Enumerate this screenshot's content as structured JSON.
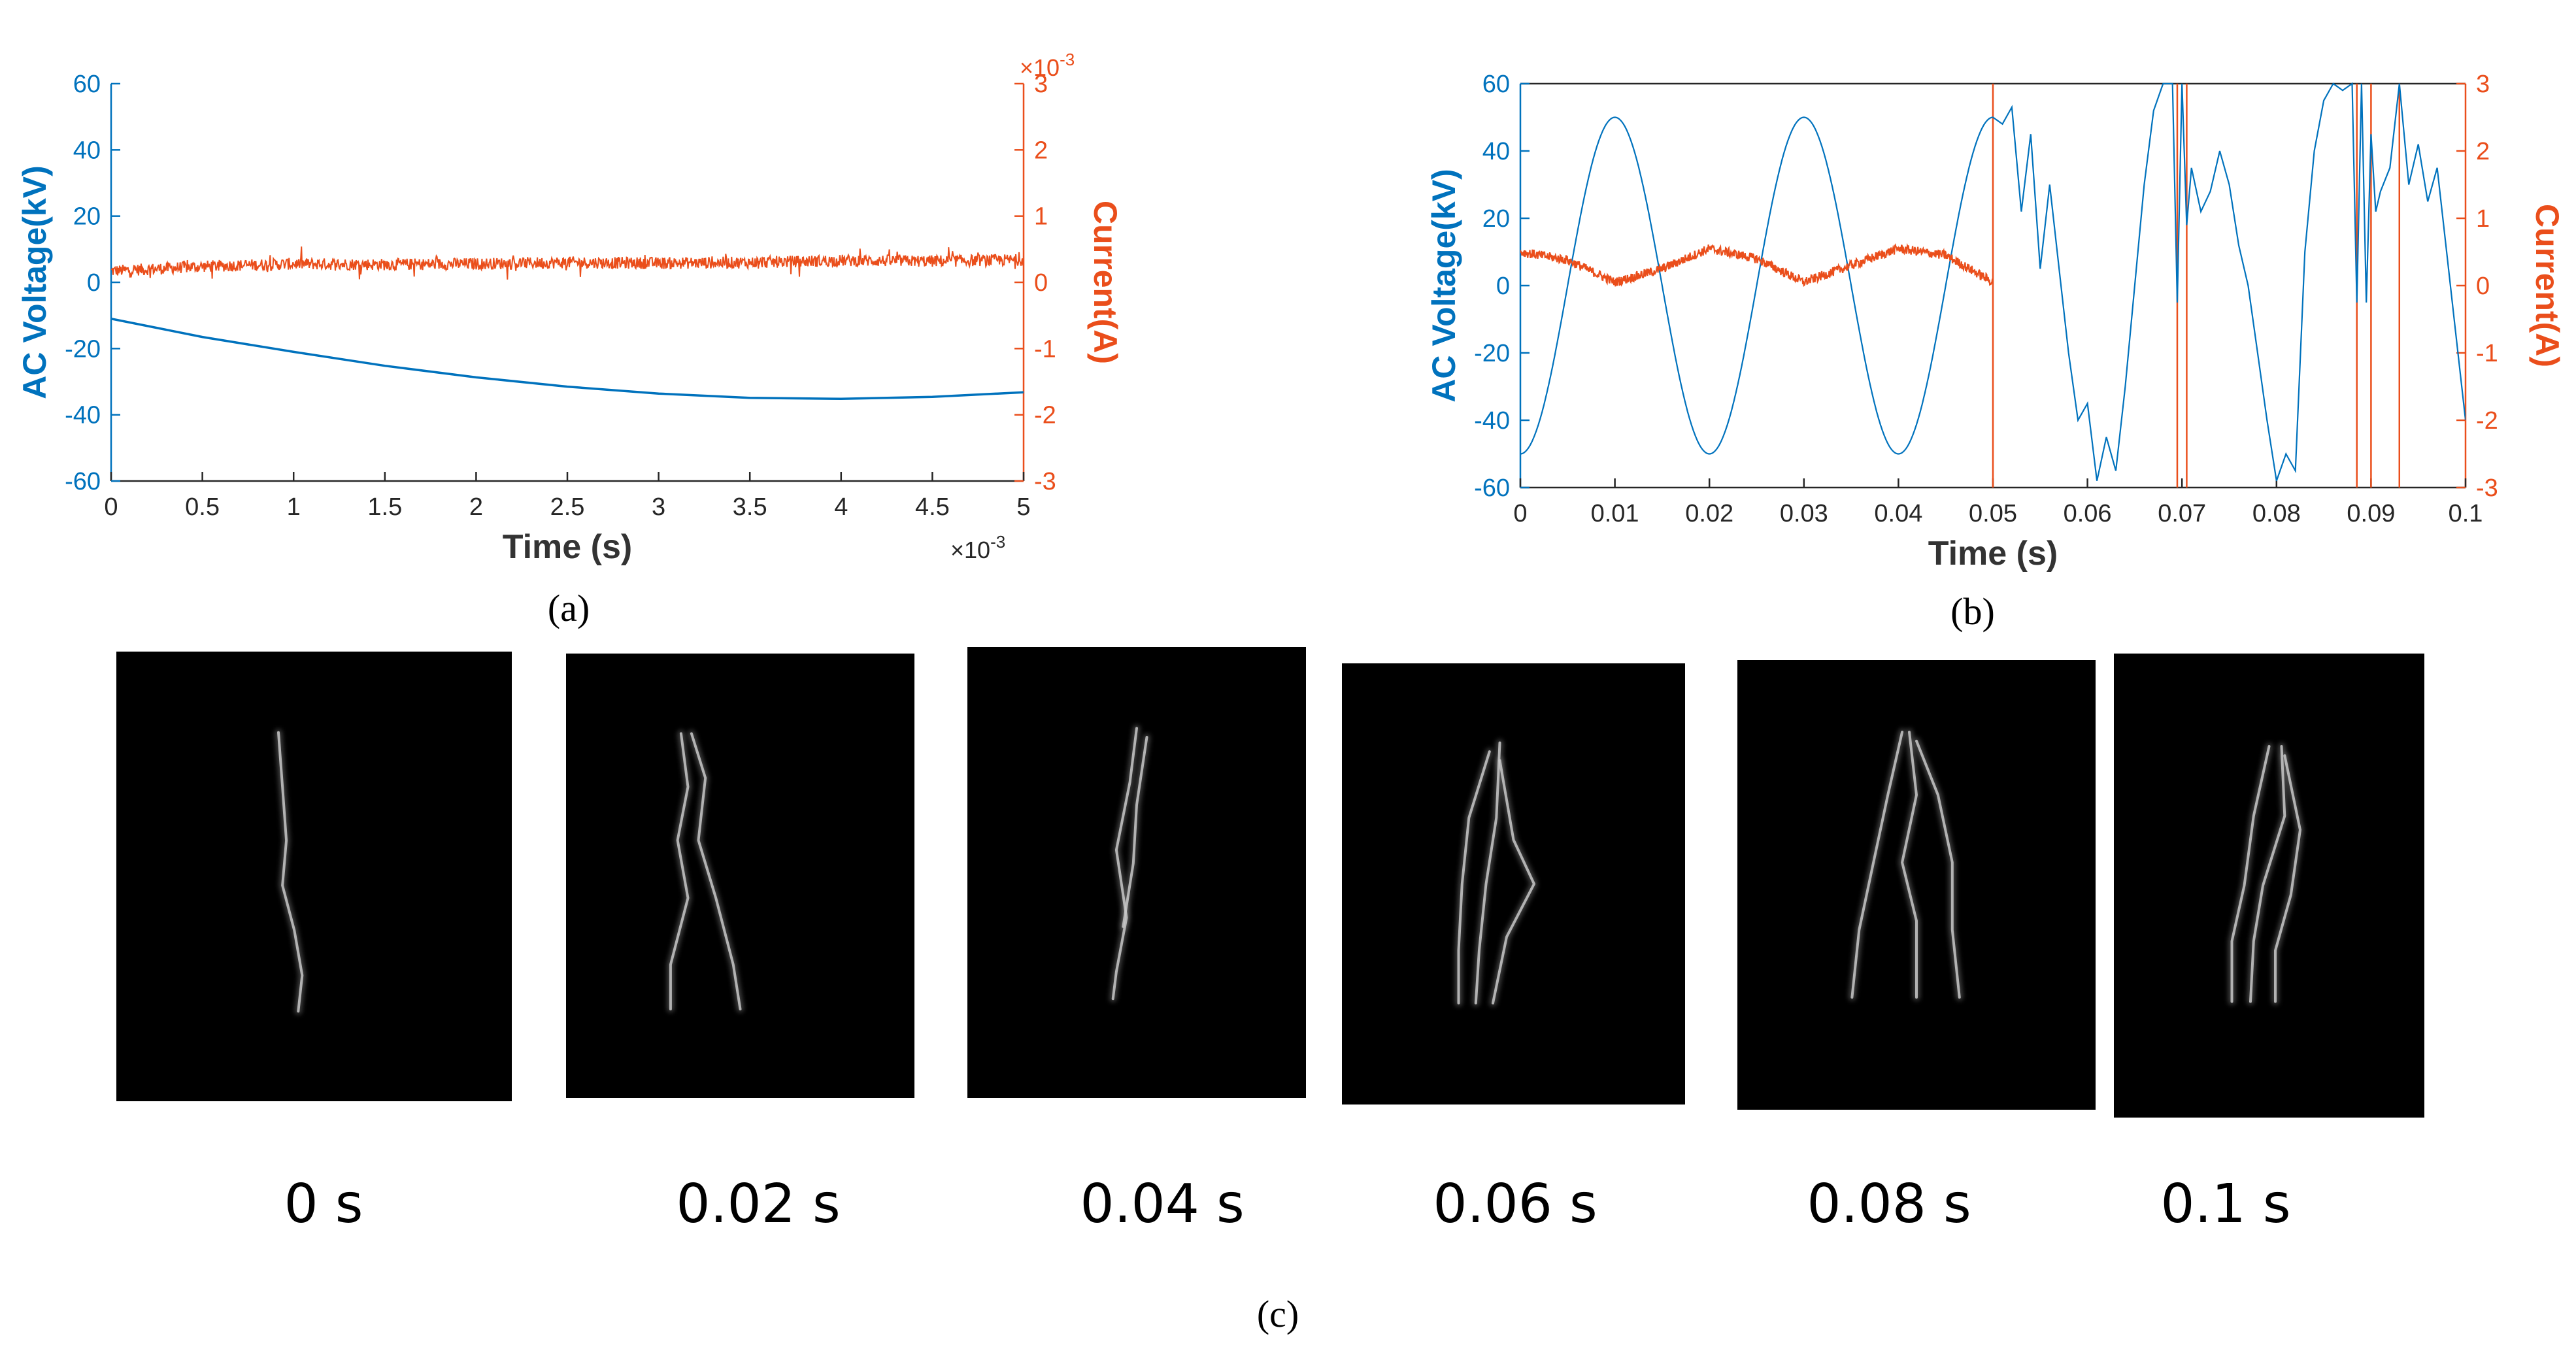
{
  "colors": {
    "voltage": "#0072BD",
    "current": "#EA4E1B",
    "axis": "#262626",
    "photo_bg": "#000000",
    "streamer": "#c8c8c8"
  },
  "chart_data": [
    {
      "id": "a",
      "type": "line",
      "panel_label": "(a)",
      "xlabel": "Time (s)",
      "x_multiplier": "×10",
      "x_multiplier_exp": "-3",
      "ylabel_left": "AC Voltage(kV)",
      "ylabel_right": "Current(A)",
      "right_multiplier": "×10",
      "right_multiplier_exp": "-3",
      "xlim": [
        0,
        5
      ],
      "ylim_left": [
        -60,
        60
      ],
      "ylim_right": [
        -3,
        3
      ],
      "x_ticks": [
        "0",
        "0.5",
        "1",
        "1.5",
        "2",
        "2.5",
        "3",
        "3.5",
        "4",
        "4.5",
        "5"
      ],
      "y_ticks_left": [
        "-60",
        "-40",
        "-20",
        "0",
        "20",
        "40",
        "60"
      ],
      "y_ticks_right": [
        "-3",
        "-2",
        "-1",
        "0",
        "1",
        "2",
        "3"
      ],
      "series": [
        {
          "name": "AC Voltage",
          "axis": "left",
          "x": [
            0,
            0.5,
            1,
            1.5,
            2,
            2.5,
            3,
            3.5,
            4,
            4.5,
            5
          ],
          "values": [
            -11,
            -16.5,
            -21,
            -25.2,
            -28.7,
            -31.5,
            -33.6,
            -34.9,
            -35.2,
            -34.6,
            -33.2
          ]
        },
        {
          "name": "Current",
          "axis": "right",
          "x": [
            0,
            0.5,
            1,
            1.5,
            2,
            2.5,
            3,
            3.5,
            4,
            4.5,
            5
          ],
          "values": [
            0.17,
            0.24,
            0.28,
            0.27,
            0.28,
            0.3,
            0.29,
            0.3,
            0.33,
            0.32,
            0.34
          ]
        }
      ]
    },
    {
      "id": "b",
      "type": "line",
      "panel_label": "(b)",
      "xlabel": "Time (s)",
      "ylabel_left": "AC Voltage(kV)",
      "ylabel_right": "Current(A)",
      "xlim": [
        0,
        0.1
      ],
      "ylim_left": [
        -60,
        60
      ],
      "ylim_right": [
        -3,
        3
      ],
      "x_ticks": [
        "0",
        "0.01",
        "0.02",
        "0.03",
        "0.04",
        "0.05",
        "0.06",
        "0.07",
        "0.08",
        "0.09",
        "0.1"
      ],
      "y_ticks_left": [
        "-60",
        "-40",
        "-20",
        "0",
        "20",
        "40",
        "60"
      ],
      "y_ticks_right": [
        "-3",
        "-2",
        "-1",
        "0",
        "1",
        "2",
        "3"
      ],
      "series": [
        {
          "name": "AC Voltage",
          "axis": "left",
          "x": [
            0,
            0.0025,
            0.005,
            0.0075,
            0.01,
            0.0125,
            0.015,
            0.0175,
            0.02,
            0.0225,
            0.025,
            0.0275,
            0.03,
            0.0325,
            0.035,
            0.0375,
            0.04,
            0.0425,
            0.045,
            0.0475,
            0.05,
            0.051,
            0.052,
            0.053,
            0.054,
            0.055,
            0.056,
            0.057,
            0.058,
            0.059,
            0.06,
            0.061,
            0.062,
            0.063,
            0.064,
            0.065,
            0.066,
            0.067,
            0.068,
            0.069,
            0.0695,
            0.07,
            0.0705,
            0.071,
            0.072,
            0.073,
            0.074,
            0.075,
            0.076,
            0.077,
            0.078,
            0.079,
            0.08,
            0.081,
            0.082,
            0.083,
            0.084,
            0.085,
            0.086,
            0.087,
            0.088,
            0.0885,
            0.089,
            0.0895,
            0.09,
            0.0905,
            0.091,
            0.092,
            0.093,
            0.094,
            0.095,
            0.096,
            0.097,
            0.098,
            0.099,
            0.1
          ],
          "values": [
            -50,
            -35.4,
            0,
            35.4,
            50,
            35.4,
            0,
            -35.4,
            -50,
            -35.4,
            0,
            35.4,
            50,
            35.4,
            0,
            -35.4,
            -50,
            -35.4,
            0,
            35.4,
            50,
            48,
            53,
            22,
            45,
            5,
            30,
            5,
            -20,
            -40,
            -35,
            -58,
            -45,
            -55,
            -30,
            0,
            30,
            52,
            60,
            60,
            -5,
            60,
            18,
            35,
            22,
            28,
            40,
            30,
            12,
            0,
            -20,
            -40,
            -58,
            -50,
            -55,
            10,
            40,
            55,
            60,
            58,
            60,
            -5,
            60,
            -5,
            45,
            22,
            28,
            35,
            60,
            30,
            42,
            25,
            35,
            10,
            -15,
            -40
          ]
        },
        {
          "name": "Current",
          "axis": "right",
          "x": [
            0,
            0.005,
            0.01,
            0.015,
            0.02,
            0.025,
            0.03,
            0.035,
            0.04,
            0.045,
            0.05
          ],
          "values": [
            0.5,
            0.38,
            0.05,
            0.25,
            0.55,
            0.4,
            0.05,
            0.3,
            0.55,
            0.45,
            0.05
          ]
        }
      ],
      "discharge_markers_x": [
        0.05,
        0.0695,
        0.0705,
        0.0885,
        0.09,
        0.093
      ]
    }
  ],
  "photos": {
    "panel_label": "(c)",
    "frames": [
      {
        "caption": "0 s"
      },
      {
        "caption": "0.02 s"
      },
      {
        "caption": "0.04 s"
      },
      {
        "caption": "0.06 s"
      },
      {
        "caption": "0.08 s"
      },
      {
        "caption": "0.1 s"
      }
    ]
  }
}
